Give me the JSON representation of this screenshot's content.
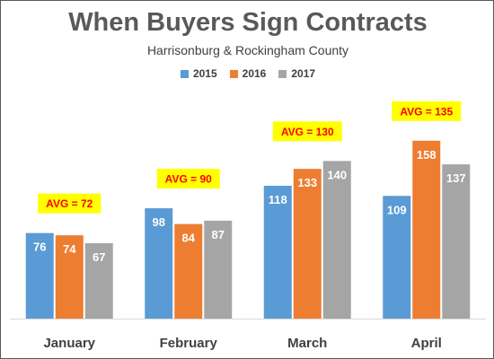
{
  "chart_data": {
    "type": "bar",
    "title": "When Buyers Sign Contracts",
    "subtitle": "Harrisonburg & Rockingham County",
    "categories": [
      "January",
      "February",
      "March",
      "April"
    ],
    "series": [
      {
        "name": "2015",
        "color": "#5B9BD5",
        "values": [
          76,
          98,
          118,
          109
        ]
      },
      {
        "name": "2016",
        "color": "#ED7D31",
        "values": [
          74,
          84,
          133,
          158
        ]
      },
      {
        "name": "2017",
        "color": "#A5A5A5",
        "values": [
          67,
          87,
          140,
          137
        ]
      }
    ],
    "annotations": [
      "AVG = 72",
      "AVG = 90",
      "AVG = 130",
      "AVG = 135"
    ],
    "annotation_style": {
      "background": "#FFFF00",
      "text_color": "#FF0000"
    },
    "ylim": [
      0,
      165
    ],
    "grid": false,
    "legend_position": "top-center",
    "xlabel": "",
    "ylabel": ""
  }
}
